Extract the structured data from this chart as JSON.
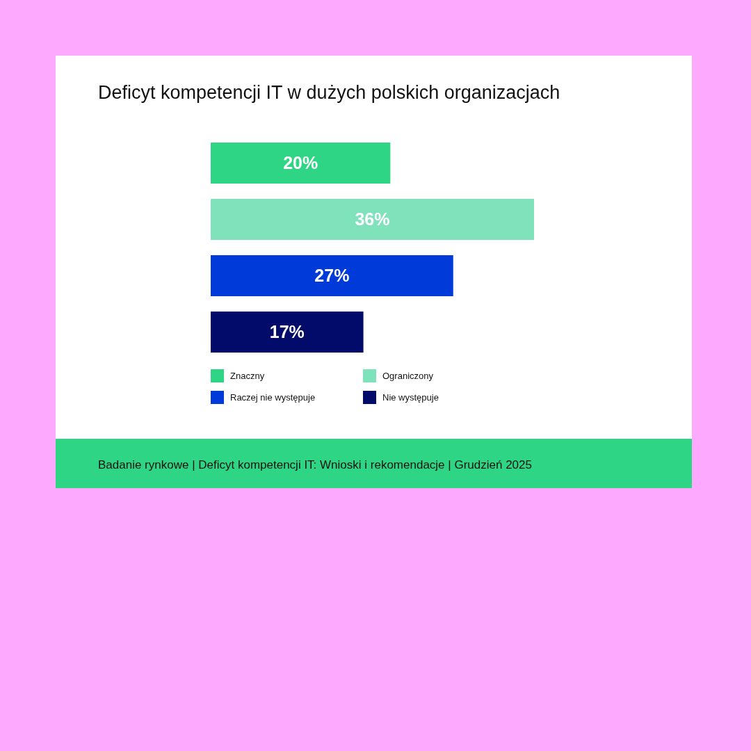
{
  "chart_data": {
    "type": "bar",
    "orientation": "horizontal",
    "stacked": true,
    "title": "Deficyt kompetencji IT w dużych polskich organizacjach",
    "categories": [
      null,
      null,
      null,
      null
    ],
    "series": [
      {
        "name": "Znaczny",
        "color": "#2ed585",
        "values": [
          20,
          null,
          null,
          null
        ],
        "value_labels": [
          "20%",
          null,
          null,
          null
        ]
      },
      {
        "name": "Ograniczony",
        "color": "#7fe2bb",
        "values": [
          null,
          36,
          null,
          null
        ],
        "value_labels": [
          null,
          "36%",
          null,
          null
        ]
      },
      {
        "name": "Raczej nie występuje",
        "color": "#003ad8",
        "values": [
          null,
          null,
          27,
          null
        ],
        "value_labels": [
          null,
          null,
          "27%",
          null
        ]
      },
      {
        "name": "Nie występuje",
        "color": "#020b6a",
        "values": [
          null,
          null,
          null,
          17
        ],
        "value_labels": [
          null,
          null,
          null,
          "17%"
        ]
      }
    ],
    "legend": "bottom",
    "grid": false,
    "annotations": [
      "Badanie rynkowe | Deficyt kompetencji IT: Wnioski i rekomendacje | Grudzień 2025"
    ]
  }
}
